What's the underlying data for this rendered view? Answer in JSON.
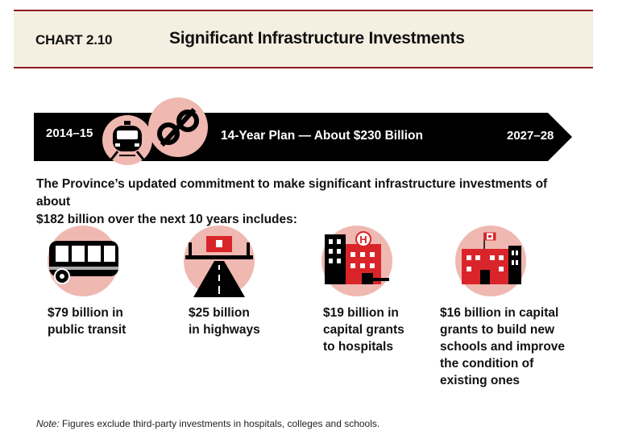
{
  "header": {
    "chart_number": "CHART 2.10",
    "title": "Significant Infrastructure Investments"
  },
  "timeline": {
    "start_label": "2014–15",
    "center_label": "14-Year Plan — About $230 Billion",
    "end_label": "2027–28",
    "icons": [
      "train-icon",
      "ontario-trillium-logo-icon"
    ]
  },
  "intro": {
    "line1": "The Province’s updated commitment to make significant infrastructure investments of about",
    "line2": "$182 billion over the next 10 years includes:"
  },
  "items": [
    {
      "icon": "bus-icon",
      "lines": [
        "$79 billion in",
        "public transit"
      ]
    },
    {
      "icon": "highway-icon",
      "lines": [
        "$25 billion",
        "in highways"
      ]
    },
    {
      "icon": "hospital-icon",
      "lines": [
        "$19 billion in",
        "capital grants",
        "to hospitals"
      ]
    },
    {
      "icon": "school-icon",
      "lines": [
        "$16 billion in capital",
        "grants to build new",
        "schools and improve",
        "the condition of",
        "existing ones"
      ]
    }
  ],
  "note": {
    "label": "Note:",
    "text": " Figures exclude third-party investments in hospitals, colleges and schools."
  },
  "colors": {
    "header_bg": "#f5efe2",
    "rule": "#8b1a24",
    "band": "#000000",
    "circle": "#efb8b1",
    "accent_red": "#d9252a"
  },
  "chart_data": {
    "type": "table",
    "title": "Significant Infrastructure Investments",
    "timeline": {
      "from": "2014–15",
      "to": "2027–28",
      "total": "About $230 Billion"
    },
    "categories": [
      "public transit",
      "highways",
      "capital grants to hospitals",
      "capital grants to schools"
    ],
    "values": [
      79,
      25,
      19,
      16
    ],
    "unit": "billion"
  }
}
